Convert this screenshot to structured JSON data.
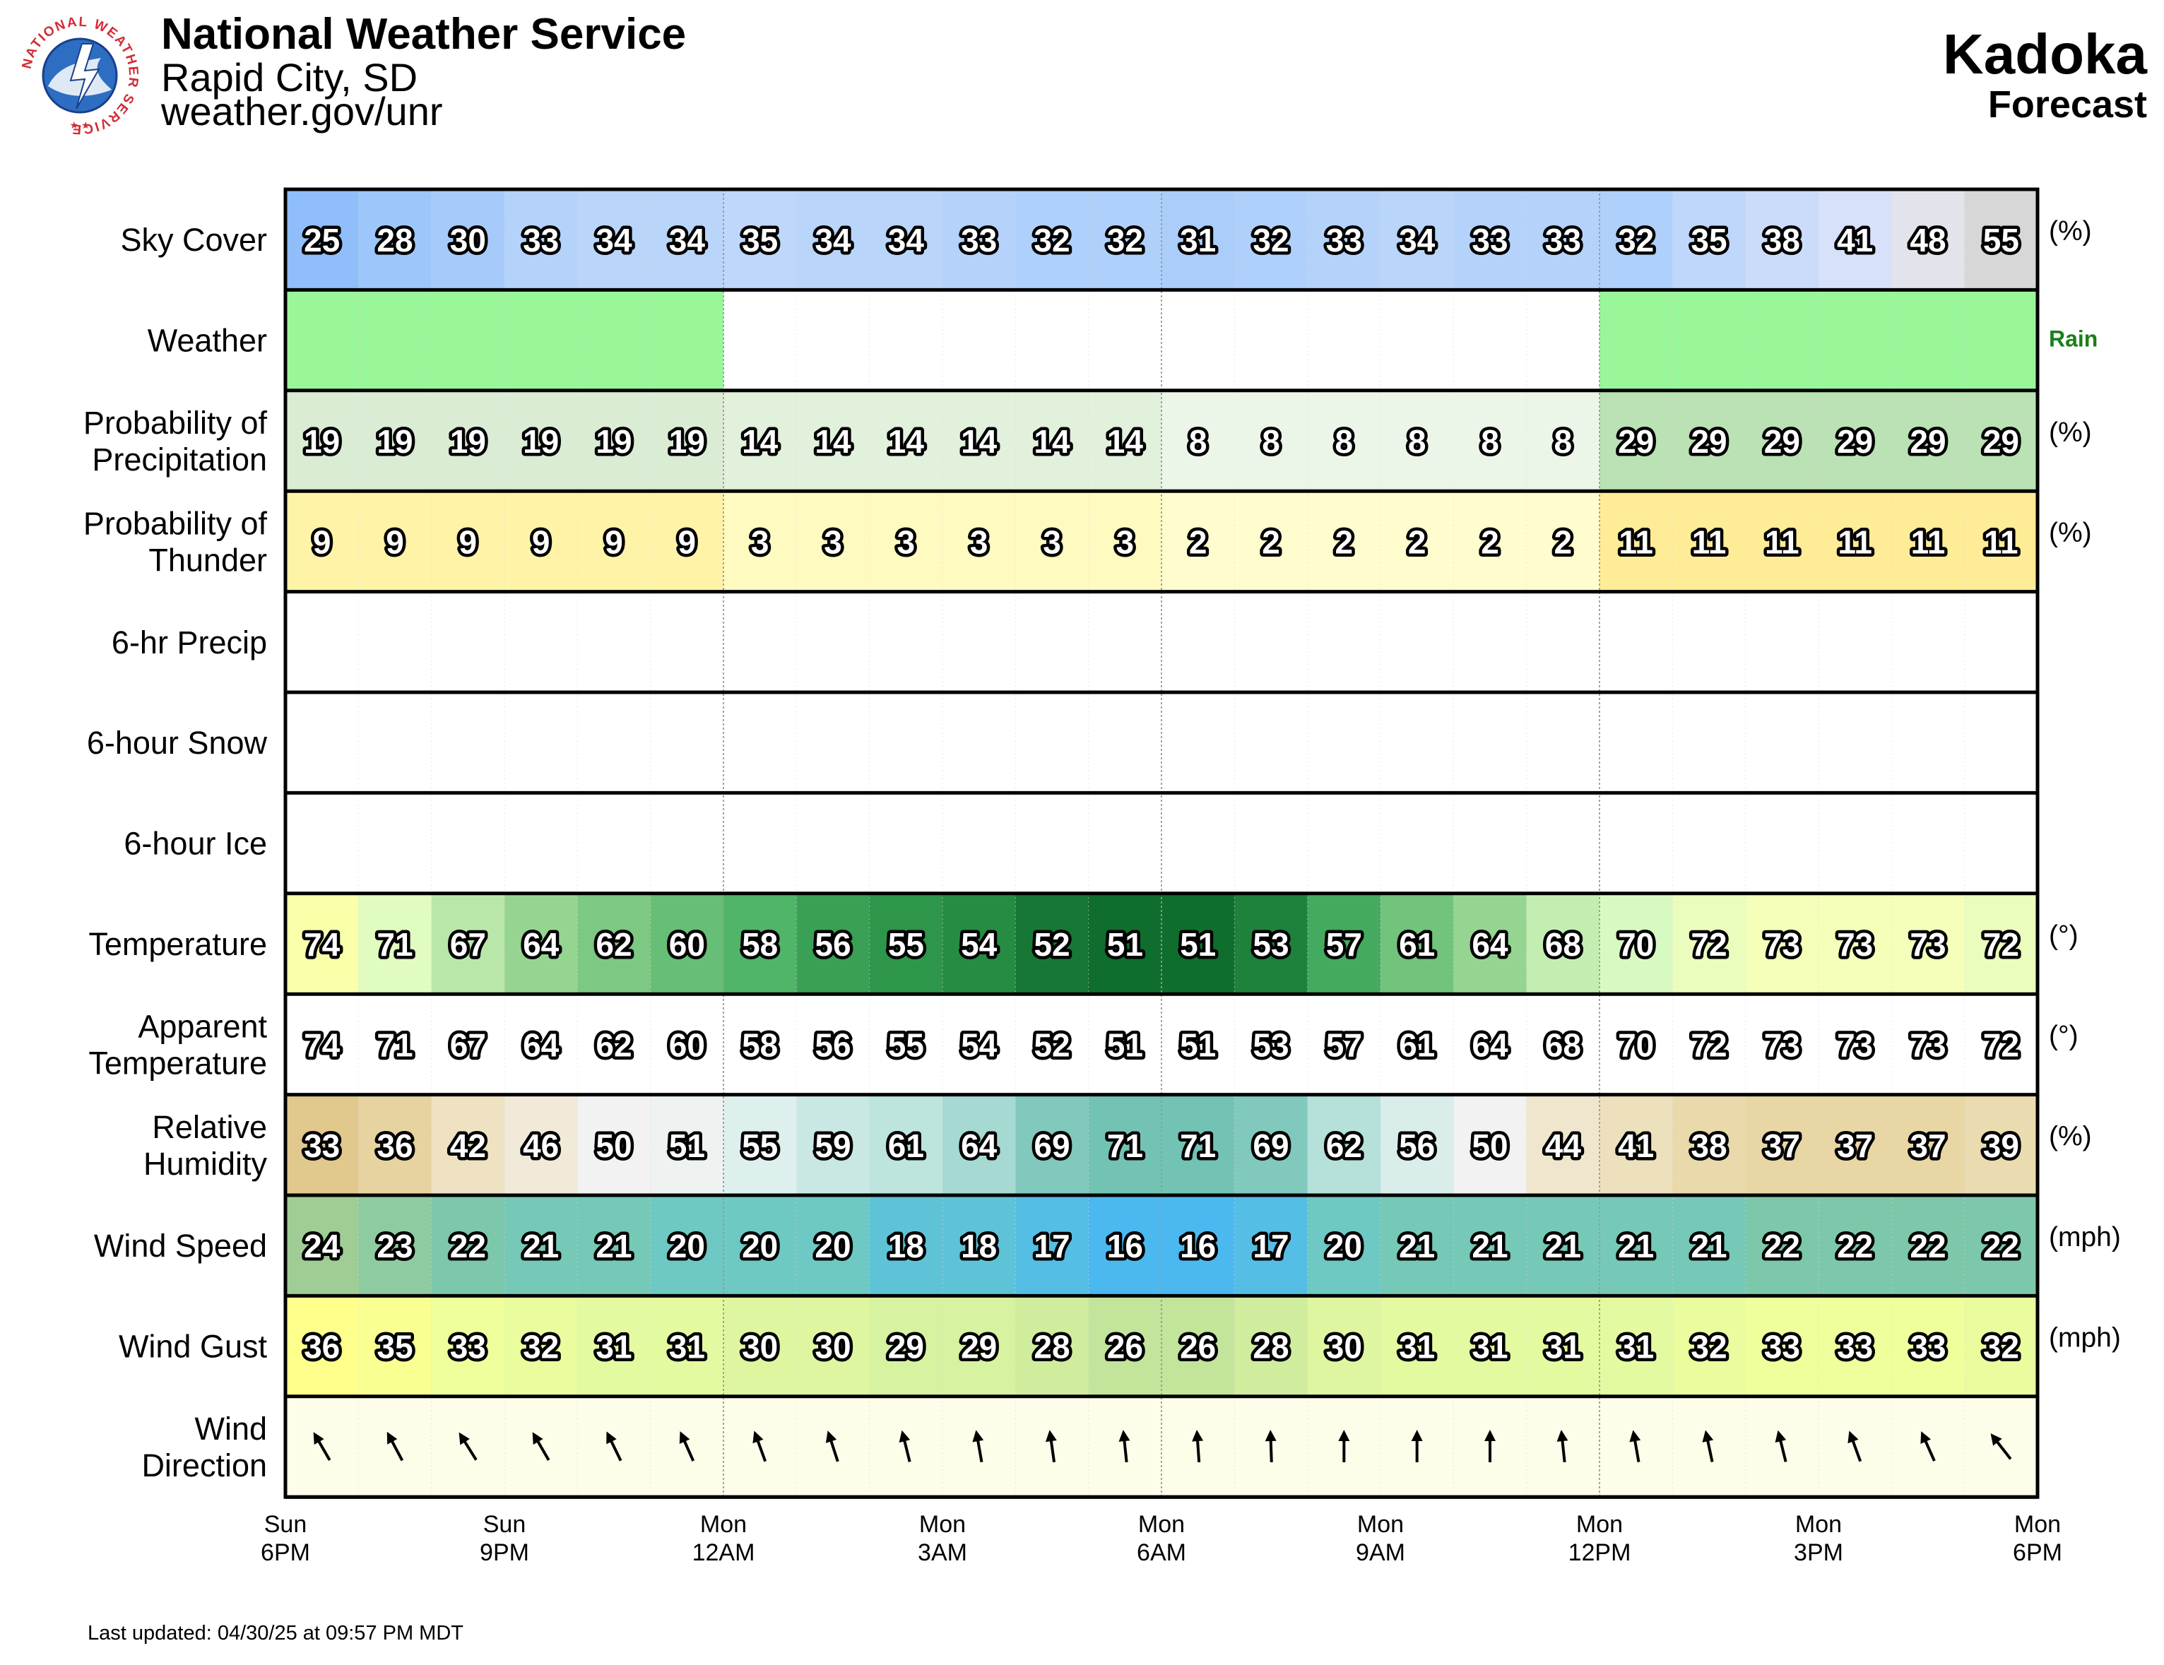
{
  "header": {
    "title": "National Weather Service",
    "office": "Rapid City, SD",
    "url": "weather.gov/unr",
    "location": "Kadoka",
    "subtitle": "Forecast",
    "logo_text": "NATIONAL WEATHER SERVICE"
  },
  "footer": {
    "updated": "Last updated: 04/30/25 at 09:57 PM MDT"
  },
  "chart_data": {
    "type": "table",
    "hours_per_column": 1,
    "time_ticks": [
      {
        "day": "Sun",
        "time": "6PM"
      },
      {
        "day": "Sun",
        "time": "9PM"
      },
      {
        "day": "Mon",
        "time": "12AM"
      },
      {
        "day": "Mon",
        "time": "3AM"
      },
      {
        "day": "Mon",
        "time": "6AM"
      },
      {
        "day": "Mon",
        "time": "9AM"
      },
      {
        "day": "Mon",
        "time": "12PM"
      },
      {
        "day": "Mon",
        "time": "3PM"
      },
      {
        "day": "Mon",
        "time": "6PM"
      }
    ],
    "rows": [
      {
        "key": "sky",
        "label": [
          "Sky Cover"
        ],
        "unit": "(%)",
        "scale": "sky",
        "values": [
          25,
          28,
          30,
          33,
          34,
          34,
          35,
          34,
          34,
          33,
          32,
          32,
          31,
          32,
          33,
          34,
          33,
          33,
          32,
          35,
          38,
          41,
          48,
          55
        ]
      },
      {
        "key": "weather",
        "label": [
          "Weather"
        ],
        "unit": "Rain",
        "unit_color": "#1a7f1a",
        "scale": "weather",
        "values": [
          "Rain",
          "Rain",
          "Rain",
          "Rain",
          "Rain",
          "Rain",
          "",
          "",
          "",
          "",
          "",
          "",
          "",
          "",
          "",
          "",
          "",
          "",
          "Rain",
          "Rain",
          "Rain",
          "Rain",
          "Rain",
          "Rain"
        ]
      },
      {
        "key": "pop",
        "label": [
          "Probability of",
          "Precipitation"
        ],
        "unit": "(%)",
        "scale": "pop",
        "values": [
          19,
          19,
          19,
          19,
          19,
          19,
          14,
          14,
          14,
          14,
          14,
          14,
          8,
          8,
          8,
          8,
          8,
          8,
          29,
          29,
          29,
          29,
          29,
          29
        ]
      },
      {
        "key": "thunder",
        "label": [
          "Probability of",
          "Thunder"
        ],
        "unit": "(%)",
        "scale": "thunder",
        "values": [
          9,
          9,
          9,
          9,
          9,
          9,
          3,
          3,
          3,
          3,
          3,
          3,
          2,
          2,
          2,
          2,
          2,
          2,
          11,
          11,
          11,
          11,
          11,
          11
        ]
      },
      {
        "key": "precip6",
        "label": [
          "6-hr Precip"
        ],
        "unit": "",
        "scale": "none",
        "values": []
      },
      {
        "key": "snow6",
        "label": [
          "6-hour Snow"
        ],
        "unit": "",
        "scale": "none",
        "values": []
      },
      {
        "key": "ice6",
        "label": [
          "6-hour Ice"
        ],
        "unit": "",
        "scale": "none",
        "values": []
      },
      {
        "key": "temp",
        "label": [
          "Temperature"
        ],
        "unit": "(°)",
        "scale": "temp",
        "values": [
          74,
          71,
          67,
          64,
          62,
          60,
          58,
          56,
          55,
          54,
          52,
          51,
          51,
          53,
          57,
          61,
          64,
          68,
          70,
          72,
          73,
          73,
          73,
          72
        ]
      },
      {
        "key": "apparent",
        "label": [
          "Apparent",
          "Temperature"
        ],
        "unit": "(°)",
        "scale": "white",
        "values": [
          74,
          71,
          67,
          64,
          62,
          60,
          58,
          56,
          55,
          54,
          52,
          51,
          51,
          53,
          57,
          61,
          64,
          68,
          70,
          72,
          73,
          73,
          73,
          72
        ]
      },
      {
        "key": "rh",
        "label": [
          "Relative",
          "Humidity"
        ],
        "unit": "(%)",
        "scale": "rh",
        "values": [
          33,
          36,
          42,
          46,
          50,
          51,
          55,
          59,
          61,
          64,
          69,
          71,
          71,
          69,
          62,
          56,
          50,
          44,
          41,
          38,
          37,
          37,
          37,
          39
        ]
      },
      {
        "key": "wind",
        "label": [
          "Wind Speed"
        ],
        "unit": "(mph)",
        "scale": "wind",
        "values": [
          24,
          23,
          22,
          21,
          21,
          20,
          20,
          20,
          18,
          18,
          17,
          16,
          16,
          17,
          20,
          21,
          21,
          21,
          21,
          21,
          22,
          22,
          22,
          22
        ]
      },
      {
        "key": "gust",
        "label": [
          "Wind Gust"
        ],
        "unit": "(mph)",
        "scale": "gust",
        "values": [
          36,
          35,
          33,
          32,
          31,
          31,
          30,
          30,
          29,
          29,
          28,
          26,
          26,
          28,
          30,
          31,
          31,
          31,
          31,
          32,
          33,
          33,
          33,
          32
        ]
      },
      {
        "key": "dir",
        "label": [
          "Wind",
          "Direction"
        ],
        "unit": "",
        "scale": "dir",
        "units": "degrees toward",
        "values": [
          330,
          332,
          328,
          330,
          334,
          336,
          340,
          342,
          346,
          350,
          352,
          354,
          356,
          358,
          0,
          0,
          0,
          354,
          350,
          348,
          346,
          340,
          336,
          322
        ]
      }
    ]
  }
}
